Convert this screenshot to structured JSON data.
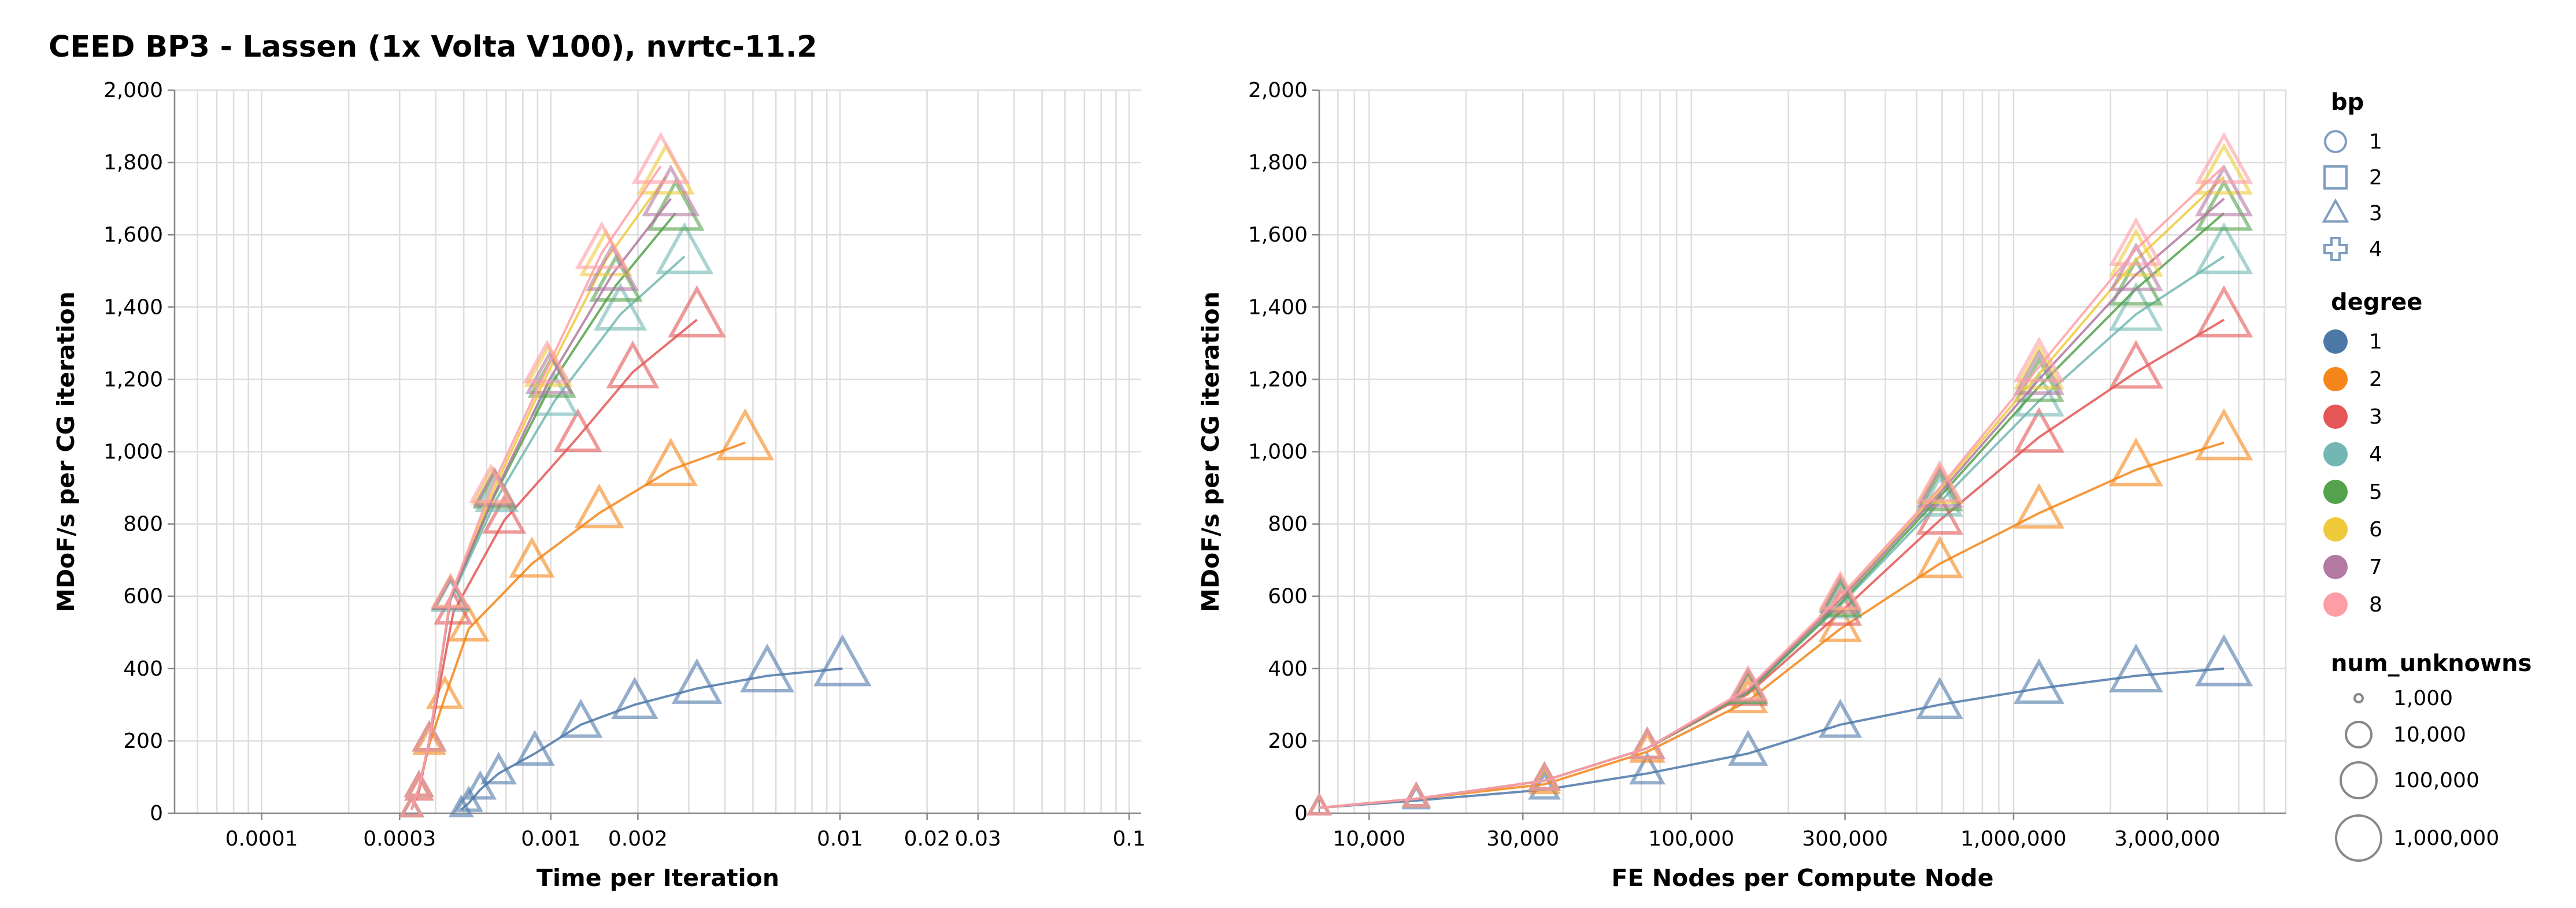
{
  "title": "CEED BP3 - Lassen (1x Volta V100), nvrtc-11.2",
  "colors": {
    "1": "#4c78a8",
    "2": "#f58518",
    "3": "#e45756",
    "4": "#72b7b2",
    "5": "#54a24b",
    "6": "#eeca3b",
    "7": "#b279a2",
    "8": "#ff9da6"
  },
  "legend": {
    "bp": {
      "title": "bp",
      "items": [
        {
          "label": "1",
          "shape": "circle"
        },
        {
          "label": "2",
          "shape": "square"
        },
        {
          "label": "3",
          "shape": "triangle"
        },
        {
          "label": "4",
          "shape": "cross"
        }
      ]
    },
    "degree": {
      "title": "degree",
      "items": [
        {
          "label": "1"
        },
        {
          "label": "2"
        },
        {
          "label": "3"
        },
        {
          "label": "4"
        },
        {
          "label": "5"
        },
        {
          "label": "6"
        },
        {
          "label": "7"
        },
        {
          "label": "8"
        }
      ]
    },
    "num_unknowns": {
      "title": "num_unknowns",
      "items": [
        {
          "label": "1,000"
        },
        {
          "label": "10,000"
        },
        {
          "label": "100,000"
        },
        {
          "label": "1,000,000"
        }
      ]
    }
  },
  "chart_data": [
    {
      "type": "line",
      "xlabel": "Time per Iteration",
      "ylabel": "MDoF/s per CG iteration",
      "xscale": "log",
      "xlim": [
        5e-05,
        0.11
      ],
      "ylim": [
        0,
        2000
      ],
      "xticks": [
        {
          "v": 0.0001,
          "label": "0.0001"
        },
        {
          "v": 0.0003,
          "label": "0.0003"
        },
        {
          "v": 0.001,
          "label": "0.001"
        },
        {
          "v": 0.002,
          "label": "0.002"
        },
        {
          "v": 0.01,
          "label": "0.01"
        },
        {
          "v": 0.02,
          "label": "0.02"
        },
        {
          "v": 0.03,
          "label": "0.03"
        },
        {
          "v": 0.1,
          "label": "0.1"
        }
      ],
      "yticks": [
        {
          "v": 0,
          "label": "0"
        },
        {
          "v": 200,
          "label": "200"
        },
        {
          "v": 400,
          "label": "400"
        },
        {
          "v": 600,
          "label": "600"
        },
        {
          "v": 800,
          "label": "800"
        },
        {
          "v": 1000,
          "label": "1,000"
        },
        {
          "v": 1200,
          "label": "1,200"
        },
        {
          "v": 1400,
          "label": "1,400"
        },
        {
          "v": 1600,
          "label": "1,600"
        },
        {
          "v": 1800,
          "label": "1,800"
        },
        {
          "v": 2000,
          "label": "2,000"
        }
      ],
      "series": [
        {
          "degree": "1",
          "bp": "3",
          "x": [
            0.00049,
            0.00052,
            0.00057,
            0.00066,
            0.00088,
            0.00127,
            0.00195,
            0.0032,
            0.0056,
            0.0102
          ],
          "y": [
            10,
            28,
            65,
            110,
            165,
            245,
            300,
            345,
            380,
            400
          ]
        },
        {
          "degree": "2",
          "bp": "3",
          "x": [
            0.00033,
            0.00035,
            0.00038,
            0.00043,
            0.00052,
            0.00086,
            0.00147,
            0.0026,
            0.0047
          ],
          "y": [
            10,
            70,
            190,
            320,
            510,
            690,
            830,
            950,
            1025
          ]
        },
        {
          "degree": "3",
          "bp": "3",
          "x": [
            0.00033,
            0.00035,
            0.00038,
            0.00046,
            0.00069,
            0.00124,
            0.00192,
            0.0032
          ],
          "y": [
            10,
            60,
            200,
            555,
            810,
            1040,
            1220,
            1365
          ]
        },
        {
          "degree": "4",
          "bp": "3",
          "x": [
            0.00033,
            0.00035,
            0.00038,
            0.00045,
            0.00065,
            0.00103,
            0.00174,
            0.0029
          ],
          "y": [
            10,
            70,
            200,
            590,
            870,
            1140,
            1380,
            1540
          ]
        },
        {
          "degree": "5",
          "bp": "3",
          "x": [
            0.00033,
            0.00035,
            0.00038,
            0.00045,
            0.00064,
            0.00101,
            0.00168,
            0.0027
          ],
          "y": [
            10,
            70,
            200,
            595,
            880,
            1190,
            1460,
            1660
          ]
        },
        {
          "degree": "6",
          "bp": "3",
          "x": [
            0.00033,
            0.00035,
            0.00038,
            0.00045,
            0.00063,
            0.00098,
            0.00155,
            0.0025
          ],
          "y": [
            10,
            70,
            200,
            600,
            890,
            1220,
            1530,
            1760
          ]
        },
        {
          "degree": "7",
          "bp": "3",
          "x": [
            0.00033,
            0.00035,
            0.00038,
            0.00045,
            0.00064,
            0.00099,
            0.00163,
            0.0026
          ],
          "y": [
            10,
            70,
            200,
            595,
            885,
            1200,
            1490,
            1700
          ]
        },
        {
          "degree": "8",
          "bp": "3",
          "x": [
            0.00033,
            0.00035,
            0.00038,
            0.00045,
            0.00062,
            0.00097,
            0.0015,
            0.0024
          ],
          "y": [
            10,
            70,
            200,
            600,
            895,
            1230,
            1550,
            1790
          ]
        }
      ]
    },
    {
      "type": "line",
      "xlabel": "FE Nodes per Compute Node",
      "ylabel": "MDoF/s per CG iteration",
      "xscale": "log",
      "xlim": [
        7000,
        7000000
      ],
      "ylim": [
        0,
        2000
      ],
      "xticks": [
        {
          "v": 10000,
          "label": "10,000"
        },
        {
          "v": 30000,
          "label": "30,000"
        },
        {
          "v": 100000,
          "label": "100,000"
        },
        {
          "v": 300000,
          "label": "300,000"
        },
        {
          "v": 1000000,
          "label": "1,000,000"
        },
        {
          "v": 3000000,
          "label": "3,000,000"
        }
      ],
      "yticks": [
        {
          "v": 0,
          "label": "0"
        },
        {
          "v": 200,
          "label": "200"
        },
        {
          "v": 400,
          "label": "400"
        },
        {
          "v": 600,
          "label": "600"
        },
        {
          "v": 800,
          "label": "800"
        },
        {
          "v": 1000,
          "label": "1,000"
        },
        {
          "v": 1200,
          "label": "1,200"
        },
        {
          "v": 1400,
          "label": "1,400"
        },
        {
          "v": 1600,
          "label": "1,600"
        },
        {
          "v": 1800,
          "label": "1,800"
        },
        {
          "v": 2000,
          "label": "2,000"
        }
      ],
      "series": [
        {
          "degree": "1",
          "bp": "3",
          "x": [
            7000,
            14000,
            35000,
            73000,
            150000,
            290000,
            590000,
            1200000,
            2400000,
            4500000
          ],
          "y": [
            15,
            35,
            65,
            110,
            165,
            245,
            300,
            345,
            380,
            400
          ]
        },
        {
          "degree": "2",
          "bp": "3",
          "x": [
            7000,
            14000,
            35000,
            73000,
            150000,
            290000,
            590000,
            1200000,
            2400000,
            4500000
          ],
          "y": [
            15,
            40,
            80,
            170,
            310,
            510,
            690,
            830,
            950,
            1025
          ]
        },
        {
          "degree": "3",
          "bp": "3",
          "x": [
            7000,
            14000,
            35000,
            73000,
            150000,
            290000,
            590000,
            1200000,
            2400000,
            4500000
          ],
          "y": [
            15,
            40,
            90,
            180,
            330,
            555,
            810,
            1040,
            1220,
            1365
          ]
        },
        {
          "degree": "4",
          "bp": "3",
          "x": [
            7000,
            14000,
            35000,
            73000,
            150000,
            290000,
            590000,
            1200000,
            2400000,
            4500000
          ],
          "y": [
            15,
            40,
            90,
            180,
            335,
            575,
            860,
            1140,
            1380,
            1540
          ]
        },
        {
          "degree": "5",
          "bp": "3",
          "x": [
            7000,
            14000,
            35000,
            73000,
            150000,
            290000,
            590000,
            1200000,
            2400000,
            4500000
          ],
          "y": [
            15,
            40,
            90,
            180,
            335,
            580,
            875,
            1180,
            1450,
            1660
          ]
        },
        {
          "degree": "6",
          "bp": "3",
          "x": [
            7000,
            14000,
            35000,
            73000,
            150000,
            290000,
            590000,
            1200000,
            2400000,
            4500000
          ],
          "y": [
            15,
            40,
            90,
            180,
            340,
            595,
            895,
            1215,
            1530,
            1760
          ]
        },
        {
          "degree": "7",
          "bp": "3",
          "x": [
            7000,
            14000,
            35000,
            73000,
            150000,
            290000,
            590000,
            1200000,
            2400000,
            4500000
          ],
          "y": [
            15,
            40,
            90,
            180,
            340,
            590,
            885,
            1200,
            1490,
            1700
          ]
        },
        {
          "degree": "8",
          "bp": "3",
          "x": [
            7000,
            14000,
            35000,
            73000,
            150000,
            290000,
            590000,
            1200000,
            2400000,
            4500000
          ],
          "y": [
            15,
            40,
            90,
            180,
            345,
            600,
            900,
            1235,
            1560,
            1790
          ]
        }
      ]
    }
  ]
}
